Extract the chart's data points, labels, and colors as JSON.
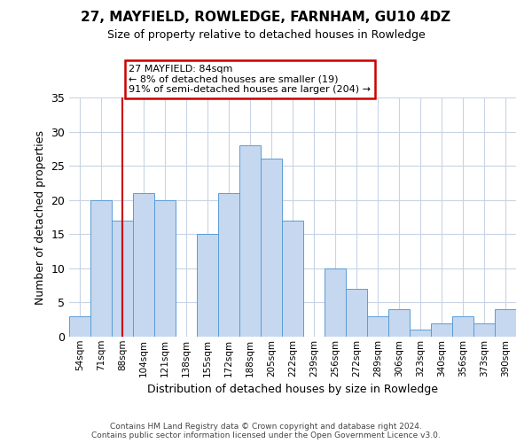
{
  "title": "27, MAYFIELD, ROWLEDGE, FARNHAM, GU10 4DZ",
  "subtitle": "Size of property relative to detached houses in Rowledge",
  "xlabel": "Distribution of detached houses by size in Rowledge",
  "ylabel": "Number of detached properties",
  "bar_color": "#c5d8f0",
  "bar_edge_color": "#5b9bd5",
  "background_color": "#ffffff",
  "grid_color": "#c8d4e4",
  "annotation_box_color": "#cc0000",
  "annotation_line_color": "#cc0000",
  "categories": [
    "54sqm",
    "71sqm",
    "88sqm",
    "104sqm",
    "121sqm",
    "138sqm",
    "155sqm",
    "172sqm",
    "188sqm",
    "205sqm",
    "222sqm",
    "239sqm",
    "256sqm",
    "272sqm",
    "289sqm",
    "306sqm",
    "323sqm",
    "340sqm",
    "356sqm",
    "373sqm",
    "390sqm"
  ],
  "values": [
    3,
    20,
    17,
    21,
    20,
    0,
    15,
    21,
    28,
    26,
    17,
    0,
    10,
    7,
    3,
    4,
    1,
    2,
    3,
    2,
    4
  ],
  "marker_index": 2,
  "annotation_title": "27 MAYFIELD: 84sqm",
  "annotation_line1": "← 8% of detached houses are smaller (19)",
  "annotation_line2": "91% of semi-detached houses are larger (204) →",
  "ylim": [
    0,
    35
  ],
  "yticks": [
    0,
    5,
    10,
    15,
    20,
    25,
    30,
    35
  ],
  "footer1": "Contains HM Land Registry data © Crown copyright and database right 2024.",
  "footer2": "Contains public sector information licensed under the Open Government Licence v3.0."
}
